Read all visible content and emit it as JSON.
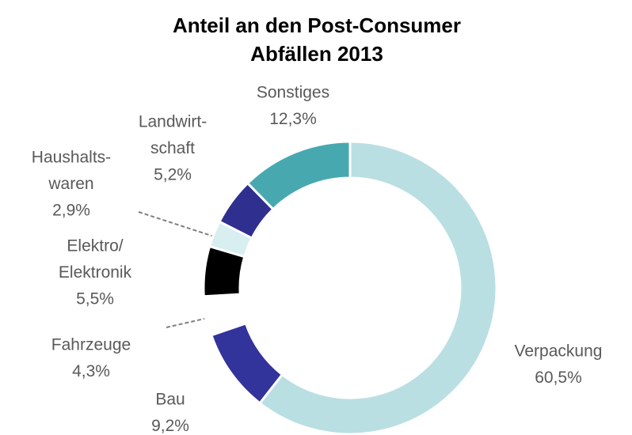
{
  "chart_data": {
    "type": "donut",
    "title": [
      "Anteil an den Post-Consumer",
      "Abfällen 2013"
    ],
    "categories": [
      [
        "Verpackung"
      ],
      [
        "Bau"
      ],
      [
        "Fahrzeuge"
      ],
      [
        "Elektro/",
        "Elektronik"
      ],
      [
        "Haushalts-",
        "waren"
      ],
      [
        "Landwirt-",
        "schaft"
      ],
      [
        "Sonstiges"
      ]
    ],
    "values": [
      60.5,
      9.2,
      4.3,
      5.5,
      2.9,
      5.2,
      12.3
    ],
    "value_labels": [
      "60,5%",
      "9,2%",
      "4,3%",
      "5,5%",
      "2,9%",
      "5,2%",
      "12,3%"
    ],
    "colors": [
      "#b9dfe3",
      "#33339c",
      "#ffffff",
      "#000000",
      "#d8eef0",
      "#2f2f90",
      "#48a8b0"
    ]
  }
}
